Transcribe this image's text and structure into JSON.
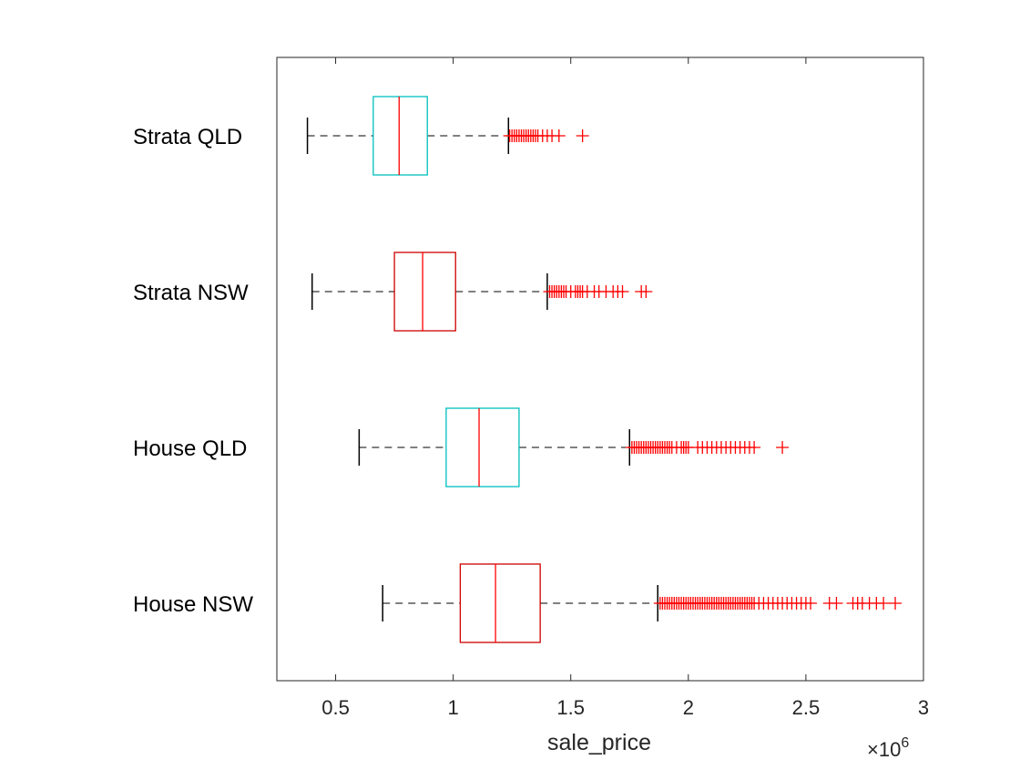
{
  "chart_data": {
    "type": "boxplot",
    "orientation": "horizontal",
    "title": "",
    "xlabel": "sale_price",
    "ylabel": "",
    "xlim": [
      0.25,
      3.0
    ],
    "x_multiplier_label": "×10",
    "x_multiplier_exponent": "6",
    "xticks": [
      "0.5",
      "1",
      "1.5",
      "2",
      "2.5",
      "3"
    ],
    "xtick_values": [
      0.5,
      1,
      1.5,
      2,
      2.5,
      3
    ],
    "grid": false,
    "categories": [
      "Strata  QLD",
      "Strata  NSW",
      "House QLD",
      "House NSW"
    ],
    "colors": {
      "box_cyan": "#00BFBF",
      "box_red": "#CC0000",
      "median": "#FF0000",
      "outlier": "#FF0000",
      "whisker": "#000000"
    },
    "boxes": [
      {
        "category": "Strata  QLD",
        "box_color": "cyan",
        "whisker_low": 0.38,
        "q1": 0.66,
        "median": 0.77,
        "q3": 0.89,
        "whisker_high": 1.235,
        "outliers": [
          1.24,
          1.25,
          1.26,
          1.27,
          1.28,
          1.29,
          1.3,
          1.31,
          1.32,
          1.33,
          1.34,
          1.35,
          1.36,
          1.38,
          1.4,
          1.42,
          1.45,
          1.55
        ]
      },
      {
        "category": "Strata  NSW",
        "box_color": "red",
        "whisker_low": 0.4,
        "q1": 0.75,
        "median": 0.87,
        "q3": 1.01,
        "whisker_high": 1.4,
        "outliers": [
          1.41,
          1.42,
          1.43,
          1.44,
          1.45,
          1.46,
          1.47,
          1.48,
          1.5,
          1.52,
          1.53,
          1.54,
          1.55,
          1.57,
          1.6,
          1.62,
          1.65,
          1.68,
          1.7,
          1.72,
          1.8,
          1.82
        ]
      },
      {
        "category": "House QLD",
        "box_color": "cyan",
        "whisker_low": 0.6,
        "q1": 0.97,
        "median": 1.11,
        "q3": 1.28,
        "whisker_high": 1.75,
        "outliers": [
          1.76,
          1.77,
          1.78,
          1.79,
          1.8,
          1.81,
          1.82,
          1.83,
          1.84,
          1.85,
          1.86,
          1.87,
          1.88,
          1.89,
          1.9,
          1.91,
          1.92,
          1.93,
          1.95,
          1.97,
          1.98,
          1.99,
          2.0,
          2.04,
          2.06,
          2.08,
          2.1,
          2.12,
          2.14,
          2.16,
          2.18,
          2.2,
          2.22,
          2.24,
          2.26,
          2.28,
          2.4
        ]
      },
      {
        "category": "House NSW",
        "box_color": "red",
        "whisker_low": 0.7,
        "q1": 1.03,
        "median": 1.18,
        "q3": 1.37,
        "whisker_high": 1.87,
        "outliers": [
          1.88,
          1.89,
          1.9,
          1.91,
          1.92,
          1.93,
          1.94,
          1.95,
          1.96,
          1.97,
          1.98,
          1.99,
          2.0,
          2.01,
          2.02,
          2.03,
          2.04,
          2.05,
          2.06,
          2.07,
          2.08,
          2.09,
          2.1,
          2.11,
          2.12,
          2.13,
          2.14,
          2.15,
          2.16,
          2.17,
          2.18,
          2.19,
          2.2,
          2.21,
          2.22,
          2.23,
          2.24,
          2.25,
          2.26,
          2.27,
          2.28,
          2.3,
          2.32,
          2.34,
          2.36,
          2.38,
          2.4,
          2.42,
          2.44,
          2.46,
          2.48,
          2.5,
          2.52,
          2.6,
          2.63,
          2.7,
          2.72,
          2.74,
          2.77,
          2.8,
          2.83,
          2.88
        ]
      }
    ]
  }
}
